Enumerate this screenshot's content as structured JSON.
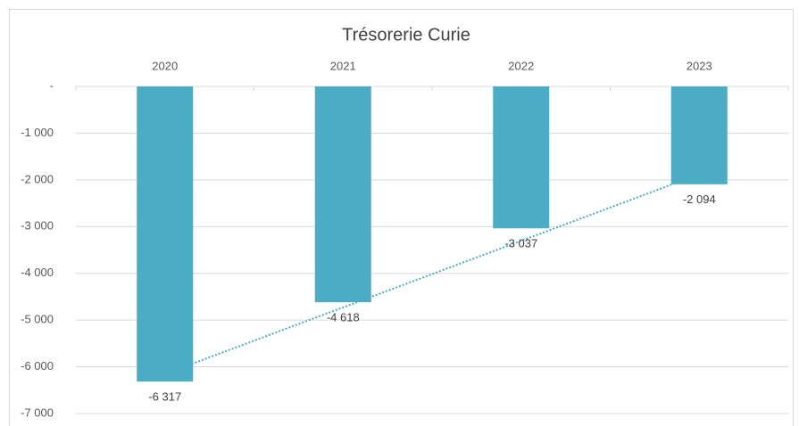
{
  "chart_data": {
    "type": "bar",
    "title": "Trésorerie Curie",
    "categories": [
      "2020",
      "2021",
      "2022",
      "2023"
    ],
    "values": [
      -6317,
      -4618,
      -3037,
      -2094
    ],
    "value_labels": [
      "-6 317",
      "-4 618",
      "-3 037",
      "-2 094"
    ],
    "color": "#4bacc6",
    "ylim": [
      -7000,
      0
    ],
    "yticks": [
      {
        "value": 0,
        "label": "-"
      },
      {
        "value": -1000,
        "label": "-1 000"
      },
      {
        "value": -2000,
        "label": "-2 000"
      },
      {
        "value": -3000,
        "label": "-3 000"
      },
      {
        "value": -4000,
        "label": "-4 000"
      },
      {
        "value": -5000,
        "label": "-5 000"
      },
      {
        "value": -6000,
        "label": "-6 000"
      },
      {
        "value": -7000,
        "label": "-7 000"
      }
    ],
    "grid": true,
    "trendline": "linear",
    "trendline_color": "#4bacc6"
  }
}
